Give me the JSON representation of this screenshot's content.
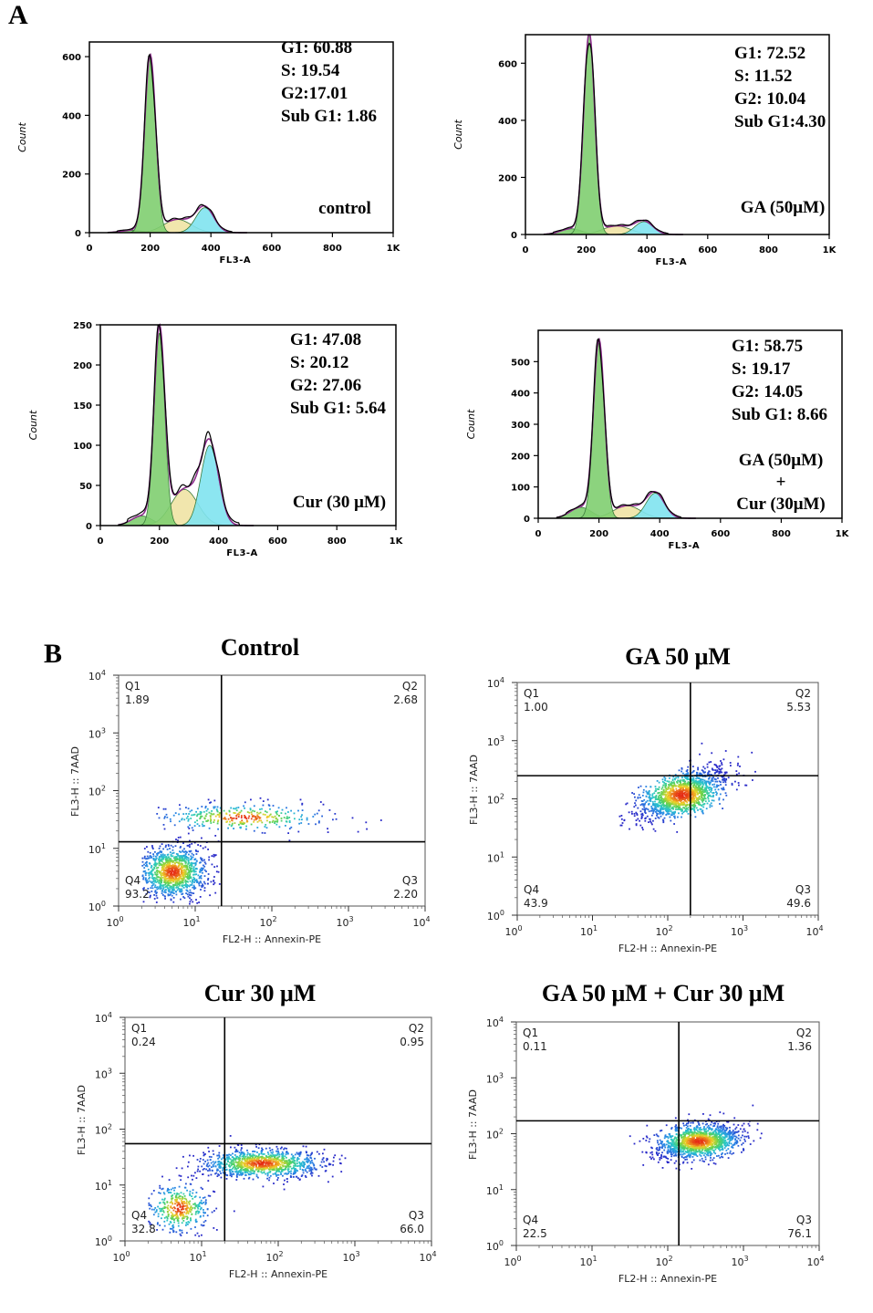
{
  "panel_labels": {
    "a": "A",
    "b": "B"
  },
  "chart_data": [
    {
      "type": "area",
      "id": "hist-control",
      "xlabel": "FL3-A",
      "ylabel": "Count",
      "xlim": [
        0,
        1000
      ],
      "ylim": [
        0,
        650
      ],
      "xticks": [
        "0",
        "200",
        "400",
        "600",
        "800",
        "1K"
      ],
      "yticks": [
        0,
        200,
        400,
        600
      ],
      "stats": [
        "G1: 60.88",
        "S: 19.54",
        "G2:17.01",
        "Sub G1: 1.86"
      ],
      "condition": [
        "control"
      ],
      "peaks": {
        "g1_pos": 200,
        "g1_height": 600,
        "g2_pos": 380,
        "g2_height": 85,
        "s_height": 45,
        "sub_height": 8,
        "env_peak": 615
      }
    },
    {
      "type": "area",
      "id": "hist-ga",
      "xlabel": "FL3-A",
      "ylabel": "Count",
      "xlim": [
        0,
        1000
      ],
      "ylim": [
        0,
        700
      ],
      "xticks": [
        "0",
        "200",
        "400",
        "600",
        "800",
        "1K"
      ],
      "yticks": [
        0,
        200,
        400,
        600
      ],
      "stats": [
        "G1: 72.52",
        "S: 11.52",
        "G2: 10.04",
        "Sub G1:4.30"
      ],
      "condition": [
        "GA (50μM)"
      ],
      "peaks": {
        "g1_pos": 210,
        "g1_height": 700,
        "g2_pos": 390,
        "g2_height": 45,
        "s_height": 30,
        "sub_height": 20,
        "env_peak": 705
      }
    },
    {
      "type": "area",
      "id": "hist-cur",
      "xlabel": "FL3-A",
      "ylabel": "Count",
      "xlim": [
        0,
        1000
      ],
      "ylim": [
        0,
        250
      ],
      "xticks": [
        "0",
        "200",
        "400",
        "600",
        "800",
        "1K"
      ],
      "yticks": [
        0,
        50,
        100,
        150,
        200,
        250
      ],
      "stats": [
        "G1: 47.08",
        "S: 20.12",
        "G2: 27.06",
        "Sub G1: 5.64"
      ],
      "condition": [
        "Cur (30 μM)"
      ],
      "peaks": {
        "g1_pos": 200,
        "g1_height": 240,
        "g2_pos": 370,
        "g2_height": 100,
        "s_height": 45,
        "sub_height": 12,
        "env_peak": 255
      }
    },
    {
      "type": "area",
      "id": "hist-combo",
      "xlabel": "FL3-A",
      "ylabel": "Count",
      "xlim": [
        0,
        1000
      ],
      "ylim": [
        0,
        600
      ],
      "xticks": [
        "0",
        "200",
        "400",
        "600",
        "800",
        "1K"
      ],
      "yticks": [
        0,
        100,
        200,
        300,
        400,
        500
      ],
      "stats": [
        "G1: 58.75",
        "S: 19.17",
        "G2: 14.05",
        "Sub G1: 8.66"
      ],
      "condition": [
        "GA (50μM)",
        "+",
        "Cur (30μM)"
      ],
      "peaks": {
        "g1_pos": 200,
        "g1_height": 560,
        "g2_pos": 385,
        "g2_height": 80,
        "s_height": 40,
        "sub_height": 35,
        "env_peak": 580
      }
    },
    {
      "type": "scatter",
      "id": "flow-control",
      "title": "Control",
      "xlabel": "FL2-H :: Annexin-PE",
      "ylabel": "FL3-H :: 7AAD",
      "xlim": [
        1,
        10000
      ],
      "ylim": [
        1,
        10000
      ],
      "log_scale": true,
      "gate": {
        "x": 22,
        "y": 13
      },
      "quadrants": {
        "q1": [
          "Q1",
          "1.89"
        ],
        "q2": [
          "Q2",
          "2.68"
        ],
        "q3": [
          "Q3",
          "2.20"
        ],
        "q4": [
          "Q4",
          "93.2"
        ]
      },
      "clusters": [
        {
          "cx": 5,
          "cy": 4,
          "sx": 0.22,
          "sy": 0.22,
          "n": 1100
        },
        {
          "cx": 40,
          "cy": 35,
          "sx": 0.55,
          "sy": 0.12,
          "n": 350
        }
      ]
    },
    {
      "type": "scatter",
      "id": "flow-ga",
      "title": "GA 50 μM",
      "xlabel": "FL2-H :: Annexin-PE",
      "ylabel": "FL3-H :: 7AAD",
      "xlim": [
        1,
        10000
      ],
      "ylim": [
        1,
        10000
      ],
      "log_scale": true,
      "gate": {
        "x": 200,
        "y": 250
      },
      "quadrants": {
        "q1": [
          "Q1",
          "1.00"
        ],
        "q2": [
          "Q2",
          "5.53"
        ],
        "q3": [
          "Q3",
          "49.6"
        ],
        "q4": [
          "Q4",
          "43.9"
        ]
      },
      "clusters": [
        {
          "cx": 150,
          "cy": 120,
          "sx": 0.3,
          "sy": 0.22,
          "n": 1400,
          "corr": 0.6
        }
      ]
    },
    {
      "type": "scatter",
      "id": "flow-cur",
      "title": "Cur 30 μM",
      "xlabel": "FL2-H :: Annexin-PE",
      "ylabel": "FL3-H :: 7AAD",
      "xlim": [
        1,
        10000
      ],
      "ylim": [
        1,
        10000
      ],
      "log_scale": true,
      "gate": {
        "x": 20,
        "y": 55
      },
      "quadrants": {
        "q1": [
          "Q1",
          "0.24"
        ],
        "q2": [
          "Q2",
          "0.95"
        ],
        "q3": [
          "Q3",
          "66.0"
        ],
        "q4": [
          "Q4",
          "32.8"
        ]
      },
      "clusters": [
        {
          "cx": 60,
          "cy": 25,
          "sx": 0.38,
          "sy": 0.13,
          "n": 1100
        },
        {
          "cx": 5,
          "cy": 4,
          "sx": 0.2,
          "sy": 0.22,
          "n": 400
        }
      ]
    },
    {
      "type": "scatter",
      "id": "flow-combo",
      "title": "GA 50 μM + Cur 30 μM",
      "xlabel": "FL2-H :: Annexin-PE",
      "ylabel": "FL3-H :: 7AAD",
      "xlim": [
        1,
        10000
      ],
      "ylim": [
        1,
        10000
      ],
      "log_scale": true,
      "gate": {
        "x": 140,
        "y": 170
      },
      "quadrants": {
        "q1": [
          "Q1",
          "0.11"
        ],
        "q2": [
          "Q2",
          "1.36"
        ],
        "q3": [
          "Q3",
          "76.1"
        ],
        "q4": [
          "Q4",
          "22.5"
        ]
      },
      "clusters": [
        {
          "cx": 250,
          "cy": 75,
          "sx": 0.28,
          "sy": 0.16,
          "n": 1400,
          "corr": 0.3
        }
      ]
    }
  ],
  "colors": {
    "g1": "#7fce70",
    "s": "#f0e3a4",
    "g2": "#80e3ef",
    "envelope": "#000000",
    "fit": "#8b2a8b",
    "sub_g1": "#7fce70"
  }
}
